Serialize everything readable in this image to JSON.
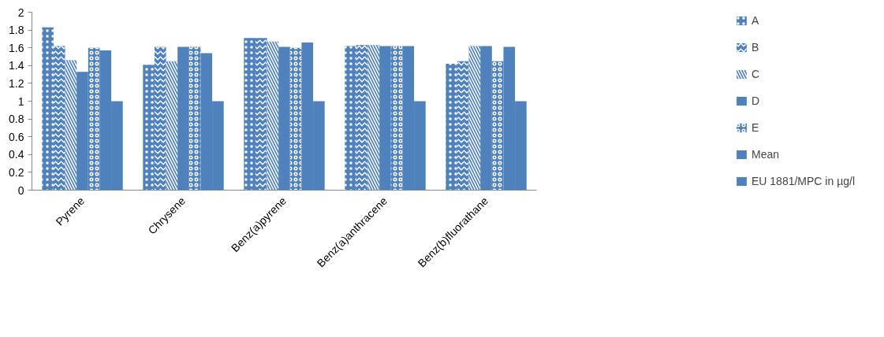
{
  "chart_data": {
    "type": "bar",
    "categories": [
      "Pyrene",
      "Chrysene",
      "Benz(a)pyrene",
      "Benz(a)anthracene",
      "Benz(b)fluorathane"
    ],
    "series": [
      {
        "name": "A",
        "color": "#4f81bd",
        "values": [
          1.83,
          1.41,
          1.71,
          1.62,
          1.42
        ]
      },
      {
        "name": "B",
        "color": "#4f81bd",
        "values": [
          1.62,
          1.61,
          1.71,
          1.63,
          1.45
        ]
      },
      {
        "name": "C",
        "color": "#4f81bd",
        "values": [
          1.46,
          1.45,
          1.67,
          1.63,
          1.62
        ]
      },
      {
        "name": "D",
        "color": "#4f81bd",
        "values": [
          1.33,
          1.61,
          1.61,
          1.62,
          1.62
        ]
      },
      {
        "name": "E",
        "color": "#4f81bd",
        "values": [
          1.6,
          1.61,
          1.6,
          1.62,
          1.45
        ]
      },
      {
        "name": "Mean",
        "color": "#4f81bd",
        "values": [
          1.57,
          1.54,
          1.66,
          1.62,
          1.61
        ]
      },
      {
        "name": "EU 1881/MPC in µg/l",
        "color": "#4f81bd",
        "values": [
          1.0,
          1.0,
          1.0,
          1.0,
          1.0
        ]
      }
    ],
    "ylim": [
      0,
      2
    ],
    "yticks": [
      0,
      0.2,
      0.4,
      0.6,
      0.8,
      1,
      1.2,
      1.4,
      1.6,
      1.8,
      2
    ],
    "grid": false,
    "legend": "right"
  }
}
